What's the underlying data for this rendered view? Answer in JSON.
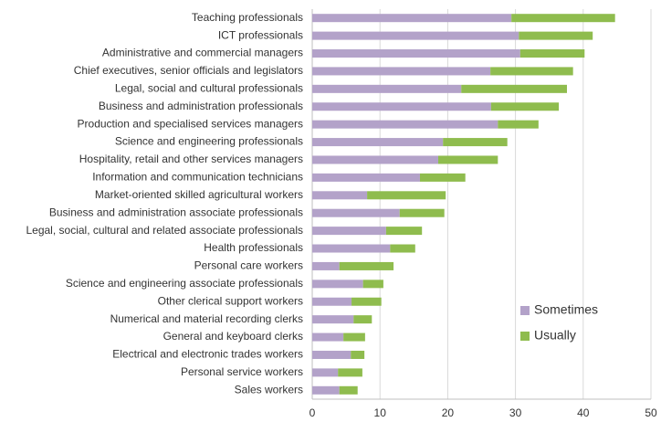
{
  "chart_data": {
    "type": "stacked-barh",
    "categories": [
      "Teaching professionals",
      "ICT professionals",
      "Administrative and commercial managers",
      "Chief executives, senior officials and legislators",
      "Legal, social and cultural professionals",
      "Business and administration professionals",
      "Production and specialised services managers",
      "Science and engineering professionals",
      "Hospitality, retail and other services managers",
      "Information and communication technicians",
      "Market-oriented skilled agricultural workers",
      "Business and administration associate professionals",
      "Legal, social, cultural and related associate professionals",
      "Health professionals",
      "Personal care workers",
      "Science and engineering associate professionals",
      "Other clerical support workers",
      "Numerical and material recording clerks",
      "General and keyboard clerks",
      "Electrical and electronic trades workers",
      "Personal service workers",
      "Sales workers"
    ],
    "series": [
      {
        "name": "Sometimes",
        "color": "#b3a2c9",
        "values": [
          29.4,
          30.5,
          30.7,
          26.3,
          22.0,
          26.4,
          27.4,
          19.3,
          18.6,
          15.9,
          8.1,
          12.9,
          10.9,
          11.5,
          4.0,
          7.5,
          5.8,
          6.1,
          4.6,
          5.7,
          3.8,
          4.0
        ]
      },
      {
        "name": "Usually",
        "color": "#8fbc4e",
        "values": [
          15.3,
          10.9,
          9.5,
          12.2,
          15.6,
          10.0,
          6.0,
          9.5,
          8.8,
          6.7,
          11.6,
          6.6,
          5.3,
          3.7,
          8.0,
          3.0,
          4.4,
          2.7,
          3.2,
          2.0,
          3.6,
          2.7
        ]
      }
    ],
    "xlim": [
      0,
      50
    ],
    "xticks": [
      0,
      10,
      20,
      30,
      40,
      50
    ],
    "grid": true,
    "legend": "lower-right"
  }
}
